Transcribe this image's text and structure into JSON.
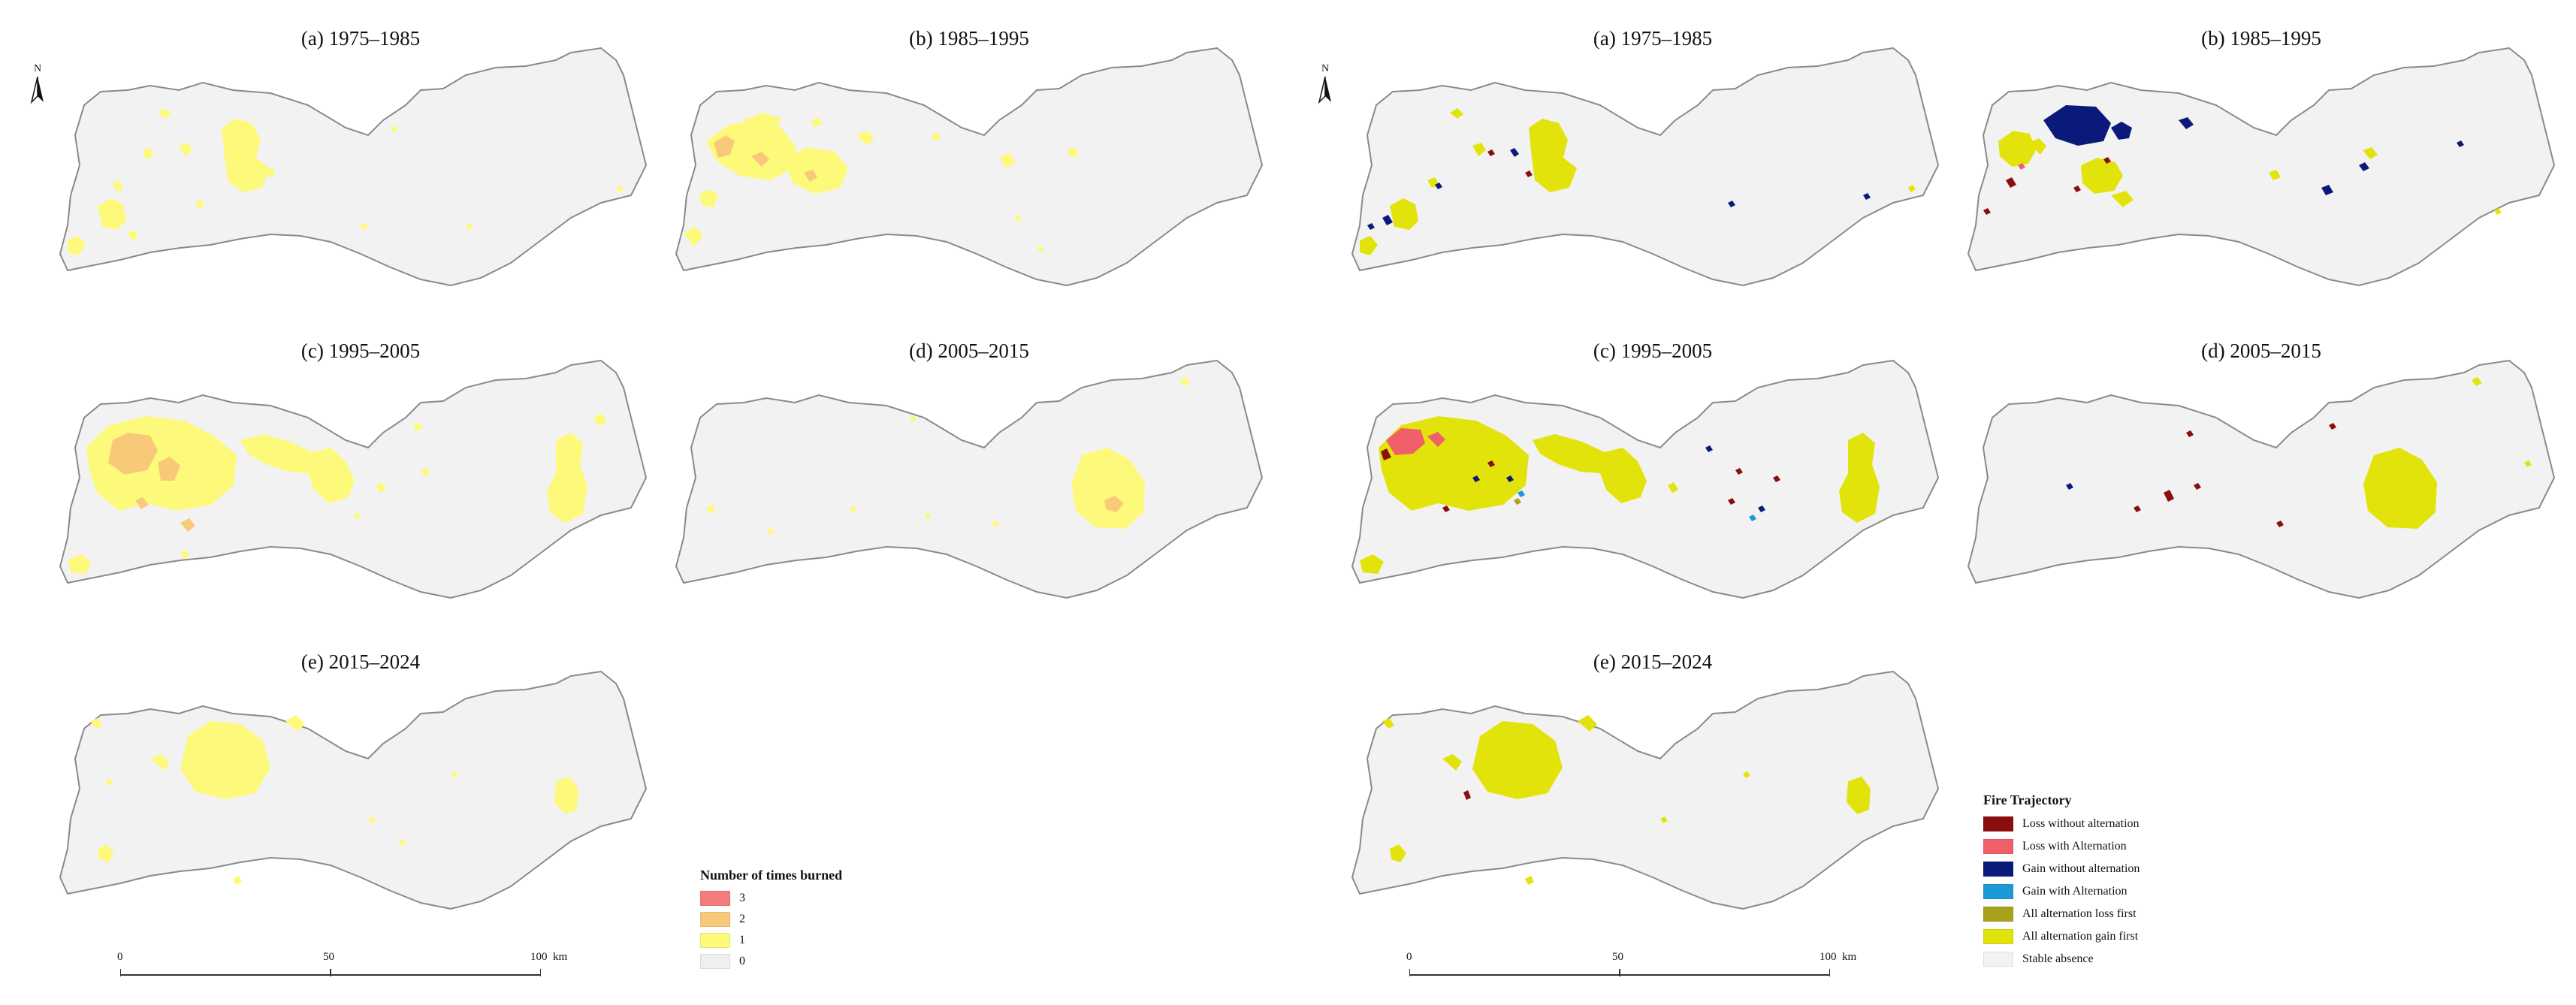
{
  "left_figure": {
    "panels": [
      {
        "title": "(a) 1975–1985"
      },
      {
        "title": "(b) 1985–1995"
      },
      {
        "title": "(c) 1995–2005"
      },
      {
        "title": "(d) 2005–2015"
      },
      {
        "title": "(e) 2015–2024"
      }
    ],
    "legend": {
      "title": "Number of times burned",
      "items": [
        {
          "label": "3",
          "color": "#f47c7c"
        },
        {
          "label": "2",
          "color": "#f9c97a"
        },
        {
          "label": "1",
          "color": "#fdfa7b"
        },
        {
          "label": "0",
          "color": "#efefef"
        }
      ]
    },
    "scale": {
      "labels": [
        "0",
        "50",
        "100"
      ],
      "unit": "km"
    }
  },
  "right_figure": {
    "panels": [
      {
        "title": "(a) 1975–1985"
      },
      {
        "title": "(b) 1985–1995"
      },
      {
        "title": "(c) 1995–2005"
      },
      {
        "title": "(d) 2005–2015"
      },
      {
        "title": "(e) 2015–2024"
      }
    ],
    "legend": {
      "title": "Fire Trajectory",
      "items": [
        {
          "label": "Loss without alternation",
          "color": "#8b0e0e"
        },
        {
          "label": "Loss with Alternation",
          "color": "#f0606a"
        },
        {
          "label": "Gain without alternation",
          "color": "#0b1a7a"
        },
        {
          "label": "Gain with Alternation",
          "color": "#1a9bd7"
        },
        {
          "label": "All alternation loss first",
          "color": "#a9a11b"
        },
        {
          "label": "All alternation gain first",
          "color": "#e3e30c"
        },
        {
          "label": "Stable absence",
          "color": "#f2f2f2"
        }
      ]
    },
    "scale": {
      "labels": [
        "0",
        "50",
        "100"
      ],
      "unit": "km"
    }
  },
  "north_arrow": {
    "label": "N"
  }
}
